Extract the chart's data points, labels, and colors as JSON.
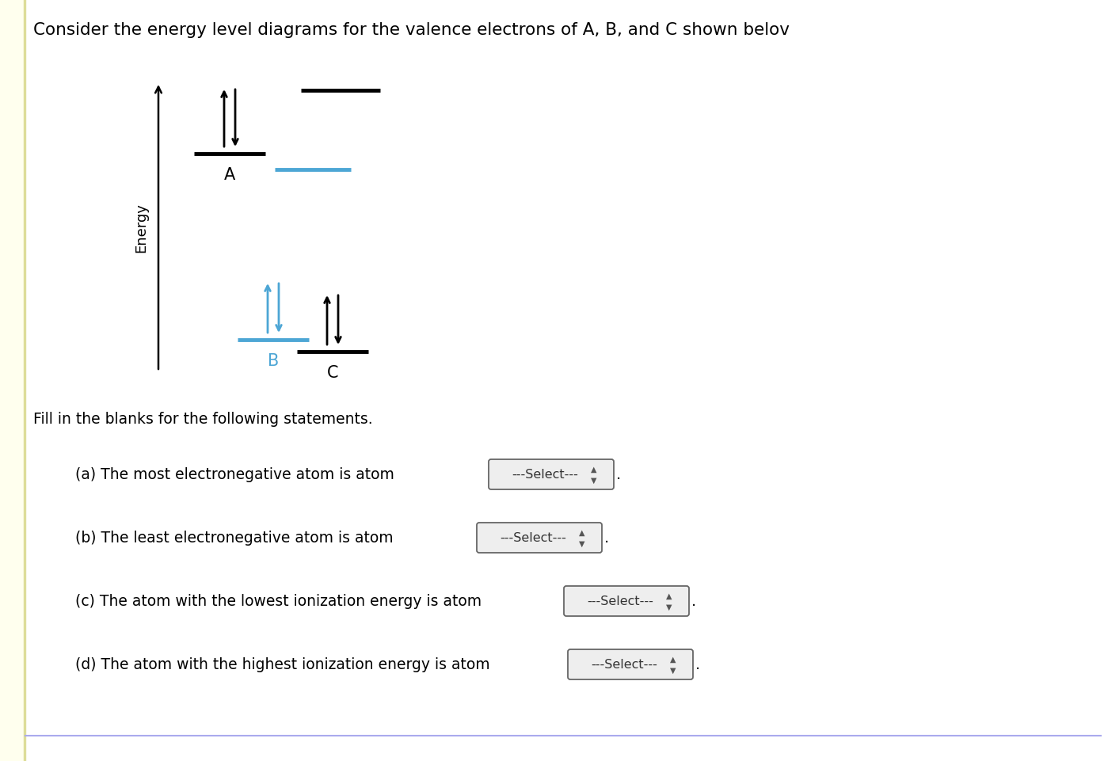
{
  "title": "Consider the energy level diagrams for the valence electrons of A, B, and C shown belov",
  "page_bg": "#ffffff",
  "left_strip_color": "#ffffee",
  "left_border_color": "#dddd99",
  "fill_statement": "Fill in the blanks for the following statements.",
  "questions": [
    "(a) The most electronegative atom is atom",
    "(b) The least electronegative atom is atom",
    "(c) The atom with the lowest ionization energy is atom",
    "(d) The atom with the highest ionization energy is atom"
  ],
  "select_box_text": "---Select---",
  "bottom_line_color": "#aaaaee",
  "black": "#000000",
  "blue": "#4da6d5"
}
